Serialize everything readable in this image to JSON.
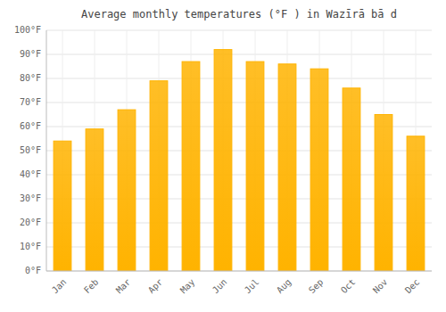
{
  "chart_data": {
    "type": "bar",
    "title": "Average monthly temperatures (°F ) in Wazīrā bā d",
    "categories": [
      "Jan",
      "Feb",
      "Mar",
      "Apr",
      "May",
      "Jun",
      "Jul",
      "Aug",
      "Sep",
      "Oct",
      "Nov",
      "Dec"
    ],
    "values": [
      54,
      59,
      67,
      79,
      87,
      92,
      87,
      86,
      84,
      76,
      65,
      56
    ],
    "color": "#FFB300",
    "ylim": [
      0,
      100
    ],
    "yticks": [
      {
        "value": 0,
        "label": "0°F"
      },
      {
        "value": 10,
        "label": "10°F"
      },
      {
        "value": 20,
        "label": "20°F"
      },
      {
        "value": 30,
        "label": "30°F"
      },
      {
        "value": 40,
        "label": "40°F"
      },
      {
        "value": 50,
        "label": "50°F"
      },
      {
        "value": 60,
        "label": "60°F"
      },
      {
        "value": 70,
        "label": "70°F"
      },
      {
        "value": 80,
        "label": "80°F"
      },
      {
        "value": 90,
        "label": "90°F"
      },
      {
        "value": 100,
        "label": "100°F"
      }
    ],
    "grid": true
  }
}
